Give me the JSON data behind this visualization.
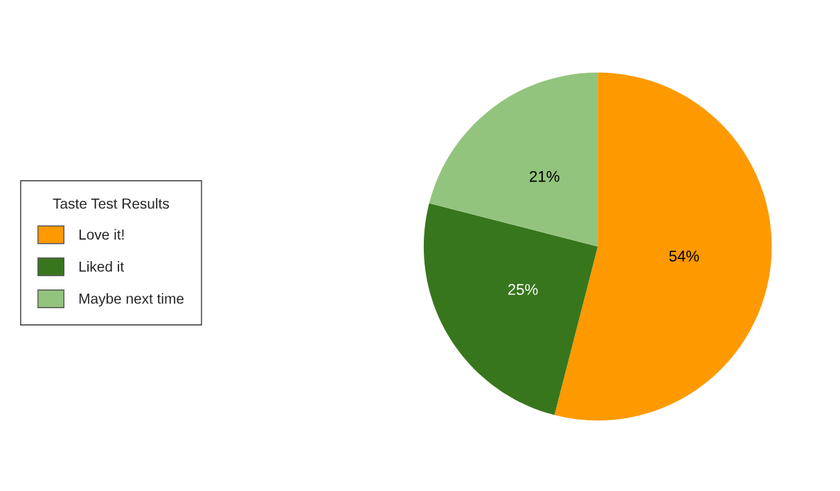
{
  "chart_data": {
    "type": "pie",
    "legend_title": "Taste Test Results",
    "categories": [
      "Love it!",
      "Liked it",
      "Maybe next time"
    ],
    "values": [
      54,
      25,
      21
    ],
    "colors": [
      "#ff9900",
      "#38761d",
      "#93c47d"
    ],
    "value_labels": [
      "54%",
      "25%",
      "21%"
    ],
    "legend": "left"
  }
}
